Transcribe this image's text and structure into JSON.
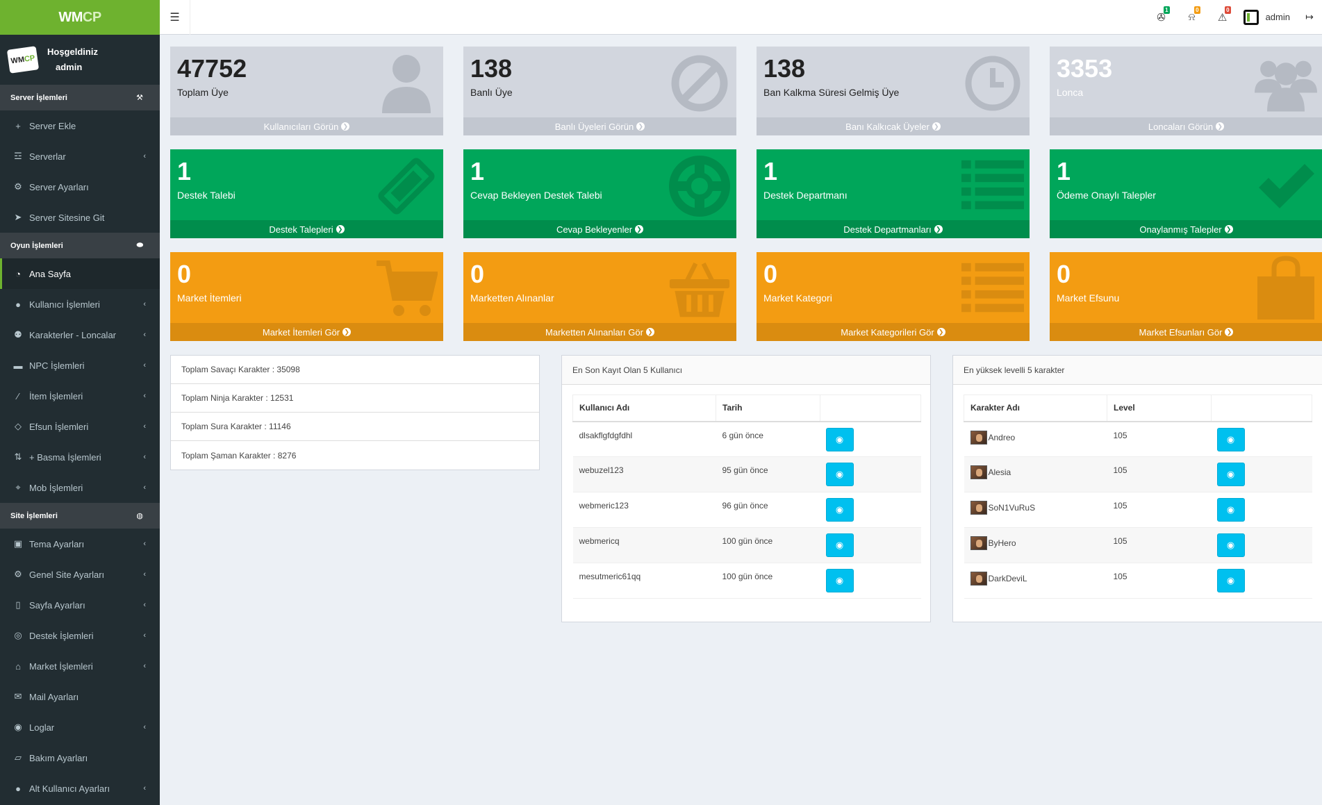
{
  "app": {
    "logo_main": "WM",
    "logo_accent": "CP",
    "welcome_line": "Hoşgeldiniz",
    "user_name": "admin"
  },
  "sidebar": {
    "sections": [
      {
        "header": "Server İşlemleri",
        "header_icon": "wrench-icon",
        "items": [
          {
            "label": "Server Ekle",
            "icon": "plus-icon",
            "chevron": false
          },
          {
            "label": "Serverlar",
            "icon": "server-icon",
            "chevron": true
          },
          {
            "label": "Server Ayarları",
            "icon": "settings-icon",
            "chevron": false
          },
          {
            "label": "Server Sitesine Git",
            "icon": "send-icon",
            "chevron": false
          }
        ]
      },
      {
        "header": "Oyun İşlemleri",
        "header_icon": "gamepad-icon",
        "items": [
          {
            "label": "Ana Sayfa",
            "icon": "dashboard-icon",
            "chevron": false,
            "active": true
          },
          {
            "label": "Kullanıcı İşlemleri",
            "icon": "user-icon",
            "chevron": true
          },
          {
            "label": "Karakterler - Loncalar",
            "icon": "users-icon",
            "chevron": true
          },
          {
            "label": "NPC İşlemleri",
            "icon": "card-icon",
            "chevron": true
          },
          {
            "label": "İtem İşlemleri",
            "icon": "magic-icon",
            "chevron": true
          },
          {
            "label": "Efsun İşlemleri",
            "icon": "diamond-icon",
            "chevron": true
          },
          {
            "label": "+ Basma İşlemleri",
            "icon": "sort-icon",
            "chevron": true
          },
          {
            "label": "Mob İşlemleri",
            "icon": "crosshair-icon",
            "chevron": true
          }
        ]
      },
      {
        "header": "Site İşlemleri",
        "header_icon": "globe-icon",
        "items": [
          {
            "label": "Tema Ayarları",
            "icon": "image-icon",
            "chevron": true
          },
          {
            "label": "Genel Site Ayarları",
            "icon": "cog-icon",
            "chevron": true
          },
          {
            "label": "Sayfa Ayarları",
            "icon": "file-icon",
            "chevron": true
          },
          {
            "label": "Destek İşlemleri",
            "icon": "lifebuoy-icon",
            "chevron": true
          },
          {
            "label": "Market İşlemleri",
            "icon": "basket-icon",
            "chevron": true
          },
          {
            "label": "Mail Ayarları",
            "icon": "envelope-icon",
            "chevron": false
          },
          {
            "label": "Loglar",
            "icon": "eye-icon",
            "chevron": true
          },
          {
            "label": "Bakım Ayarları",
            "icon": "eraser-icon",
            "chevron": false
          },
          {
            "label": "Alt Kullanıcı Ayarları",
            "icon": "user-icon",
            "chevron": true
          }
        ]
      }
    ]
  },
  "topbar": {
    "menu_icon": "hamburger-icon",
    "notifications": [
      {
        "icon": "ticket-icon",
        "count": "1",
        "color": "#00a65a"
      },
      {
        "icon": "bell-icon",
        "count": "0",
        "color": "#f39c12"
      },
      {
        "icon": "warning-icon",
        "count": "0",
        "color": "#dd4b39"
      }
    ],
    "user_label": "admin",
    "logout_icon": "sign-out-icon"
  },
  "stat_boxes": [
    {
      "value": "47752",
      "label": "Toplam Üye",
      "link": "Kullanıcıları Görün",
      "icon": "user-icon",
      "color": "gray"
    },
    {
      "value": "138",
      "label": "Banlı Üye",
      "link": "Banlı Üyeleri Görün",
      "icon": "ban-icon",
      "color": "gray"
    },
    {
      "value": "138",
      "label": "Ban Kalkma Süresi Gelmiş Üye",
      "link": "Banı Kalkıcak Üyeler",
      "icon": "clock-icon",
      "color": "gray"
    },
    {
      "value": "3353",
      "label": "Lonca",
      "link": "Loncaları Görün",
      "icon": "users-icon",
      "color": "gray-light"
    },
    {
      "value": "1",
      "label": "Destek Talebi",
      "link": "Destek Talepleri",
      "icon": "ticket-icon",
      "color": "green"
    },
    {
      "value": "1",
      "label": "Cevap Bekleyen Destek Talebi",
      "link": "Cevap Bekleyenler",
      "icon": "lifebuoy-icon",
      "color": "green"
    },
    {
      "value": "1",
      "label": "Destek Departmanı",
      "link": "Destek Departmanları",
      "icon": "list-icon",
      "color": "green"
    },
    {
      "value": "1",
      "label": "Ödeme Onaylı Talepler",
      "link": "Onaylanmış Talepler",
      "icon": "check-icon",
      "color": "green"
    },
    {
      "value": "0",
      "label": "Market İtemleri",
      "link": "Market İtemleri Gör",
      "icon": "cart-icon",
      "color": "orange"
    },
    {
      "value": "0",
      "label": "Marketten Alınanlar",
      "link": "Marketten Alınanları Gör",
      "icon": "basket-icon",
      "color": "orange"
    },
    {
      "value": "0",
      "label": "Market Kategori",
      "link": "Market Kategorileri Gör",
      "icon": "list-icon",
      "color": "orange"
    },
    {
      "value": "0",
      "label": "Market Efsunu",
      "link": "Market Efsunları Gör",
      "icon": "shopping-bag-icon",
      "color": "orange"
    }
  ],
  "character_totals": [
    "Toplam Savaçı Karakter : 35098",
    "Toplam Ninja Karakter : 12531",
    "Toplam Sura Karakter : 11146",
    "Toplam Şaman Karakter : 8276"
  ],
  "recent_users": {
    "title": "En Son Kayıt Olan 5 Kullanıcı",
    "columns": [
      "Kullanıcı Adı",
      "Tarih",
      ""
    ],
    "rows": [
      {
        "name": "dlsakflgfdgfdhl",
        "date": "6 gün önce"
      },
      {
        "name": "webuzel123",
        "date": "95 gün önce"
      },
      {
        "name": "webmeric123",
        "date": "96 gün önce"
      },
      {
        "name": "webmericq",
        "date": "100 gün önce"
      },
      {
        "name": "mesutmeric61qq",
        "date": "100 gün önce"
      }
    ]
  },
  "top_characters": {
    "title": "En yüksek levelli 5 karakter",
    "columns": [
      "Karakter Adı",
      "Level",
      ""
    ],
    "rows": [
      {
        "name": "Andreo",
        "level": "105"
      },
      {
        "name": "Alesia",
        "level": "105"
      },
      {
        "name": "SoN1VuRuS",
        "level": "105"
      },
      {
        "name": "ByHero",
        "level": "105"
      },
      {
        "name": "DarkDeviL",
        "level": "105"
      }
    ]
  }
}
